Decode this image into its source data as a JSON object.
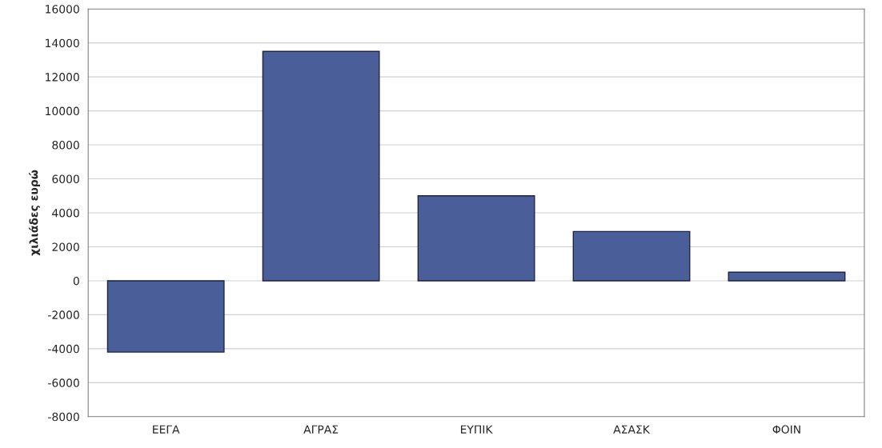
{
  "chart_data": {
    "type": "bar",
    "ylabel": "χιλιάδες ευρώ",
    "categories": [
      "ΕΕΓΑ",
      "ΑΓΡΑΣ",
      "ΕΥΠΙΚ",
      "ΑΣΑΣΚ",
      "ΦΟΙΝ"
    ],
    "values": [
      -4200,
      13500,
      5000,
      2900,
      500
    ],
    "color": "#4a5e9a",
    "ylim": [
      -8000,
      16000
    ],
    "yticks": [
      -8000,
      -6000,
      -4000,
      -2000,
      0,
      2000,
      4000,
      6000,
      8000,
      10000,
      12000,
      14000,
      16000
    ],
    "grid": "y"
  }
}
